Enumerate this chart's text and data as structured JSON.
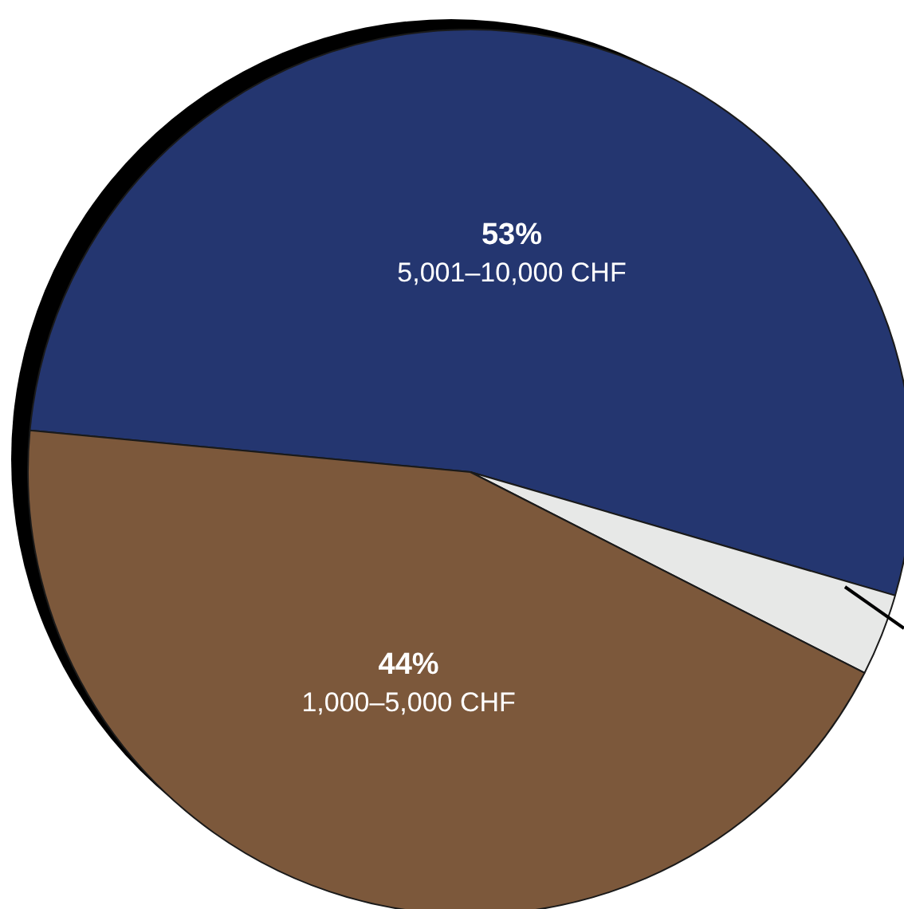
{
  "chart_data": {
    "type": "pie",
    "categories": [
      "5,001–10,000 CHF",
      null,
      "1,000–5,000 CHF"
    ],
    "values": [
      53,
      3,
      44
    ],
    "colors": [
      "#243670",
      "#e7e8e7",
      "#7c583b"
    ],
    "value_labels": [
      "53%",
      null,
      "44%"
    ],
    "legend": false
  }
}
